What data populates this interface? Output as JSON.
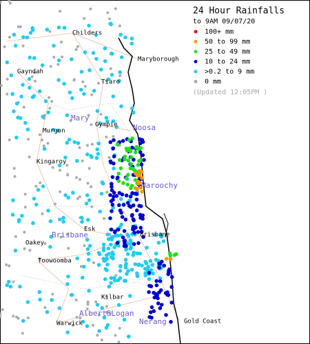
{
  "header": {
    "title": "24 Hour Rainfalls",
    "subtitle": "to 9AM 09/07/20",
    "updated": "(Updated 12:05PM  )"
  },
  "legend": [
    {
      "label": "100+ mm",
      "color": "#ff0000"
    },
    {
      "label": "50  to 99 mm",
      "color": "#ff9900"
    },
    {
      "label": "25  to 49 mm",
      "color": "#22dd22"
    },
    {
      "label": "10  to 24 mm",
      "color": "#0000cc"
    },
    {
      "label": ">0.2 to 9 mm",
      "color": "#22ccee"
    },
    {
      "label": "0  mm",
      "color": "#aaaaaa"
    }
  ],
  "towns": [
    "Childers",
    "Maryborough",
    "Gayndah",
    "Tiaro",
    "Gympie",
    "Murgon",
    "Kingaroy",
    "Esk",
    "Oakey",
    "Toowoomba",
    "Brisbane",
    "Kilbar",
    "Warwick",
    "Gold Coast"
  ],
  "basins": [
    "Mary",
    "Noosa",
    "Maroochy",
    "Brisbane",
    "Albert&Logan",
    "Nerang"
  ]
}
